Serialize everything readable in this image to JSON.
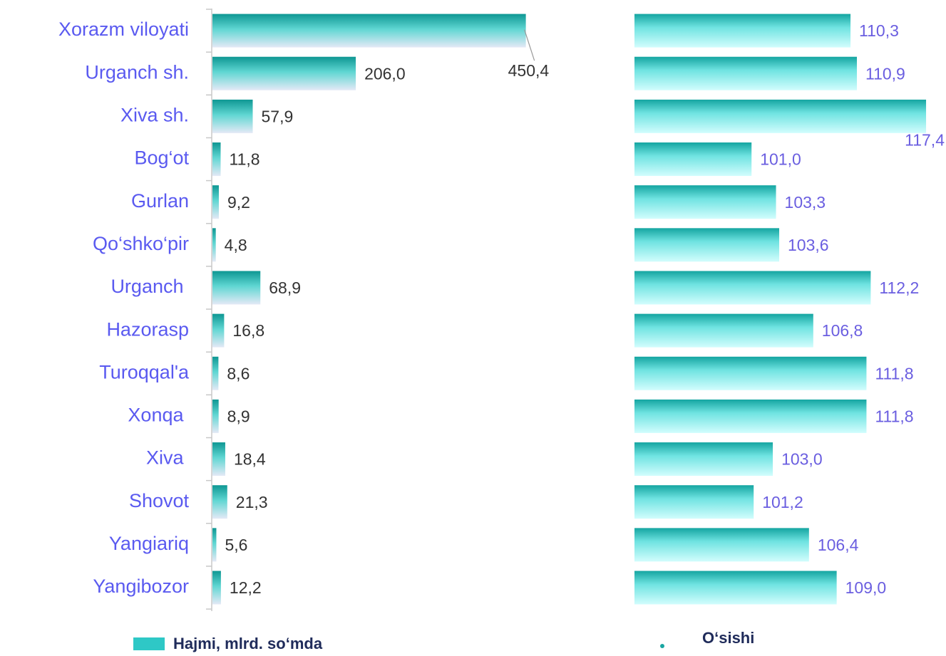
{
  "chart_data": [
    {
      "type": "bar",
      "orientation": "horizontal",
      "categories": [
        "Xorazm viloyati",
        "Urganch sh.",
        "Xiva sh.",
        "Bog‘ot",
        "Gurlan",
        "Qo‘shko‘pir",
        "Urganch ",
        "Hazorasp",
        "Turoqqal'a",
        "Xonqa ",
        "Xiva ",
        "Shovot",
        "Yangiariq",
        "Yangibozor"
      ],
      "series": [
        {
          "name": "Hajmi, mlrd. so‘mda",
          "color": "#19a6a2",
          "values": [
            450.4,
            206.0,
            57.9,
            11.8,
            9.2,
            4.8,
            68.9,
            16.8,
            8.6,
            8.9,
            18.4,
            21.3,
            5.6,
            12.2
          ],
          "value_labels": [
            "450,4",
            "206,0",
            "57,9",
            "11,8",
            "9,2",
            "4,8",
            "68,9",
            "16,8",
            "8,6",
            "8,9",
            "18,4",
            "21,3",
            "5,6",
            "12,2"
          ]
        }
      ],
      "xlim": [
        0,
        460
      ]
    },
    {
      "type": "bar",
      "orientation": "horizontal",
      "series": [
        {
          "name": "O‘sishi",
          "color": "#1fb3b0",
          "values": [
            110.3,
            110.9,
            117.4,
            101.0,
            103.3,
            103.6,
            112.2,
            106.8,
            111.8,
            111.8,
            103.0,
            101.2,
            106.4,
            109.0
          ],
          "value_labels": [
            "110,3",
            "110,9",
            "117,4",
            "101,0",
            "103,3",
            "103,6",
            "112,2",
            "106,8",
            "111,8",
            "111,8",
            "103,0",
            "101,2",
            "106,4",
            "109,0"
          ]
        }
      ],
      "xlim": [
        90,
        118
      ]
    }
  ]
}
